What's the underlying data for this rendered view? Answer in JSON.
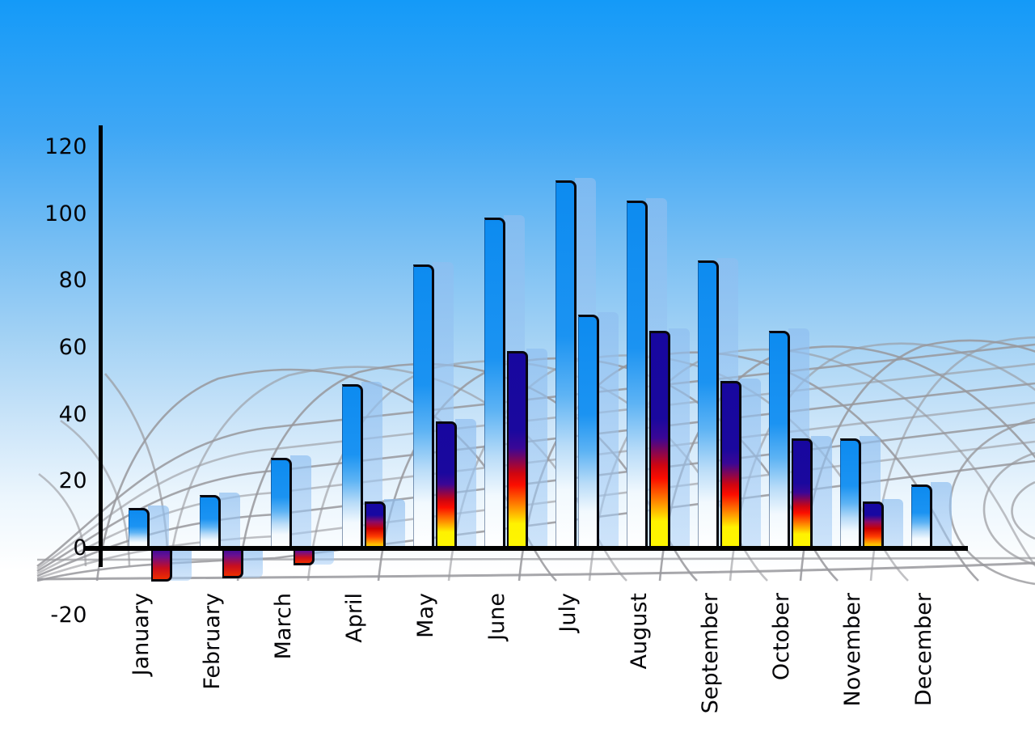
{
  "chart_data": {
    "type": "bar",
    "title": "",
    "xlabel": "",
    "ylabel": "",
    "categories": [
      "January",
      "February",
      "March",
      "April",
      "May",
      "June",
      "July",
      "August",
      "September",
      "October",
      "November",
      "December"
    ],
    "series": [
      {
        "name": "primary-blue-bars",
        "values": [
          12,
          16,
          27,
          49,
          85,
          99,
          110,
          104,
          86,
          65,
          33,
          19
        ]
      },
      {
        "name": "secondary-rainbow-bars",
        "values": [
          -10,
          -9,
          -5,
          14,
          38,
          59,
          70,
          65,
          50,
          33,
          14,
          null
        ]
      }
    ],
    "secondary_bar_styles": [
      "rainbow",
      "rainbow",
      "rainbow",
      "rainbow",
      "rainbow",
      "rainbow",
      "blue",
      "rainbow",
      "rainbow",
      "rainbow",
      "rainbow",
      "none"
    ],
    "y_ticks": [
      120,
      100,
      80,
      60,
      40,
      20,
      0,
      -20
    ],
    "ylim": [
      -20,
      120
    ],
    "legend": "none",
    "grid": "decorative-perspective-mesh"
  },
  "colors": {
    "sky_top": "#149af8",
    "sky_mid": "#8ec8f4",
    "sky_bottom": "#ffffff",
    "axis": "#000000",
    "grid_line": "#98989c",
    "bar_blue_top": "#0d8bf0",
    "bar_blue_bottom": "#ffffff",
    "rainbow_navy": "#17079f",
    "rainbow_red": "#e80000",
    "rainbow_yellow": "#fff200",
    "ghost_blue": "#9ec9f1",
    "label_text": "#050508"
  }
}
